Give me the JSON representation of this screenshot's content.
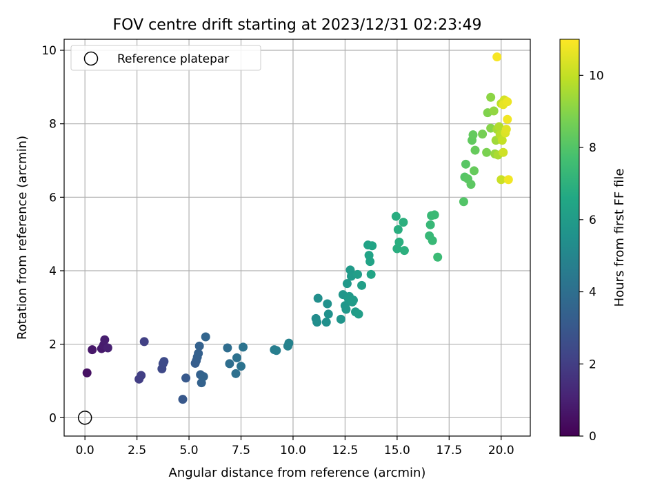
{
  "chart_data": {
    "type": "scatter",
    "title": "FOV centre drift starting at 2023/12/31 02:23:49",
    "xlabel": "Angular distance from reference (arcmin)",
    "ylabel": "Rotation from reference (arcmin)",
    "xlim": [
      -1.0,
      21.4
    ],
    "ylim": [
      -0.5,
      10.3
    ],
    "xticks": [
      "0.0",
      "2.5",
      "5.0",
      "7.5",
      "10.0",
      "12.5",
      "15.0",
      "17.5",
      "20.0"
    ],
    "yticks": [
      "0",
      "2",
      "4",
      "6",
      "8",
      "10"
    ],
    "grid": true,
    "legend": {
      "position": "top-left",
      "entries": [
        "Reference platepar"
      ]
    },
    "colorbar": {
      "label": "Hours from first FF file",
      "range": [
        0,
        11
      ],
      "ticks": [
        "0",
        "2",
        "4",
        "6",
        "8",
        "10"
      ],
      "colormap": "viridis"
    },
    "reference": {
      "x": 0.0,
      "y": 0.0
    },
    "points": [
      [
        0.1,
        1.22,
        0.5
      ],
      [
        0.35,
        1.85,
        0.7
      ],
      [
        0.8,
        1.88,
        0.8
      ],
      [
        0.9,
        1.98,
        0.85
      ],
      [
        0.95,
        2.12,
        0.9
      ],
      [
        1.1,
        1.9,
        1.0
      ],
      [
        2.6,
        1.05,
        2.0
      ],
      [
        2.7,
        1.15,
        2.05
      ],
      [
        2.85,
        2.07,
        2.1
      ],
      [
        3.7,
        1.33,
        2.4
      ],
      [
        3.75,
        1.47,
        2.45
      ],
      [
        3.8,
        1.53,
        2.5
      ],
      [
        4.7,
        0.5,
        3.0
      ],
      [
        4.85,
        1.08,
        3.05
      ],
      [
        5.3,
        1.48,
        3.2
      ],
      [
        5.35,
        1.55,
        3.25
      ],
      [
        5.4,
        1.65,
        3.3
      ],
      [
        5.45,
        1.75,
        3.35
      ],
      [
        5.5,
        1.95,
        3.4
      ],
      [
        5.55,
        1.17,
        3.4
      ],
      [
        5.6,
        0.95,
        3.45
      ],
      [
        5.7,
        1.12,
        3.5
      ],
      [
        5.8,
        2.2,
        3.55
      ],
      [
        6.85,
        1.9,
        3.9
      ],
      [
        6.95,
        1.47,
        3.95
      ],
      [
        7.25,
        1.2,
        4.05
      ],
      [
        7.3,
        1.63,
        4.1
      ],
      [
        7.5,
        1.4,
        4.15
      ],
      [
        7.6,
        1.92,
        4.2
      ],
      [
        9.1,
        1.85,
        4.6
      ],
      [
        9.2,
        1.83,
        4.65
      ],
      [
        9.75,
        1.95,
        4.8
      ],
      [
        9.8,
        2.03,
        4.85
      ],
      [
        11.1,
        2.7,
        5.3
      ],
      [
        11.15,
        2.6,
        5.35
      ],
      [
        11.2,
        3.25,
        5.4
      ],
      [
        11.6,
        2.6,
        5.45
      ],
      [
        11.65,
        3.1,
        5.5
      ],
      [
        11.7,
        2.82,
        5.5
      ],
      [
        12.3,
        2.68,
        5.7
      ],
      [
        12.4,
        3.35,
        5.75
      ],
      [
        12.5,
        3.05,
        5.8
      ],
      [
        12.55,
        2.95,
        5.8
      ],
      [
        12.6,
        3.65,
        5.85
      ],
      [
        12.65,
        3.25,
        5.9
      ],
      [
        12.7,
        3.3,
        5.9
      ],
      [
        12.75,
        4.02,
        5.95
      ],
      [
        12.8,
        3.85,
        5.95
      ],
      [
        12.85,
        3.15,
        6.0
      ],
      [
        12.9,
        3.2,
        6.0
      ],
      [
        13.0,
        2.88,
        6.05
      ],
      [
        13.1,
        3.9,
        6.1
      ],
      [
        13.15,
        2.82,
        6.1
      ],
      [
        13.3,
        3.6,
        6.15
      ],
      [
        13.6,
        4.7,
        6.3
      ],
      [
        13.65,
        4.42,
        6.35
      ],
      [
        13.7,
        4.25,
        6.35
      ],
      [
        13.75,
        3.9,
        6.4
      ],
      [
        13.8,
        4.68,
        6.4
      ],
      [
        14.95,
        5.48,
        6.8
      ],
      [
        15.0,
        4.6,
        6.85
      ],
      [
        15.05,
        5.12,
        6.85
      ],
      [
        15.1,
        4.78,
        6.9
      ],
      [
        15.3,
        5.32,
        6.95
      ],
      [
        15.35,
        4.55,
        6.95
      ],
      [
        16.55,
        4.95,
        7.3
      ],
      [
        16.6,
        5.25,
        7.3
      ],
      [
        16.65,
        5.5,
        7.35
      ],
      [
        16.7,
        4.82,
        7.35
      ],
      [
        16.8,
        5.52,
        7.4
      ],
      [
        16.95,
        4.37,
        7.45
      ],
      [
        18.2,
        5.88,
        8.0
      ],
      [
        18.25,
        6.55,
        8.05
      ],
      [
        18.3,
        6.9,
        8.1
      ],
      [
        18.4,
        6.5,
        8.15
      ],
      [
        18.55,
        6.35,
        8.2
      ],
      [
        18.6,
        7.55,
        8.3
      ],
      [
        18.65,
        7.7,
        8.35
      ],
      [
        18.7,
        6.72,
        8.4
      ],
      [
        18.75,
        7.28,
        8.4
      ],
      [
        19.1,
        7.72,
        8.7
      ],
      [
        19.3,
        7.22,
        8.8
      ],
      [
        19.35,
        8.3,
        8.9
      ],
      [
        19.5,
        7.88,
        9.0
      ],
      [
        19.5,
        8.72,
        9.1
      ],
      [
        19.65,
        8.35,
        9.2
      ],
      [
        19.7,
        7.18,
        9.3
      ],
      [
        19.75,
        7.55,
        9.4
      ],
      [
        19.8,
        7.85,
        9.5
      ],
      [
        19.85,
        7.15,
        9.6
      ],
      [
        19.9,
        7.92,
        9.7
      ],
      [
        19.95,
        7.7,
        9.8
      ],
      [
        20.0,
        8.55,
        9.9
      ],
      [
        20.05,
        7.55,
        10.0
      ],
      [
        20.0,
        6.48,
        10.1
      ],
      [
        20.1,
        7.22,
        10.2
      ],
      [
        20.15,
        8.65,
        10.3
      ],
      [
        20.2,
        7.75,
        10.4
      ],
      [
        20.25,
        7.85,
        10.5
      ],
      [
        20.1,
        8.52,
        10.6
      ],
      [
        20.3,
        8.6,
        10.7
      ],
      [
        20.3,
        8.12,
        10.8
      ],
      [
        20.35,
        6.48,
        10.8
      ],
      [
        19.8,
        9.82,
        10.9
      ]
    ]
  }
}
